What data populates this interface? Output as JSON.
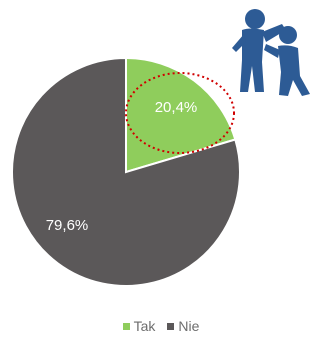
{
  "chart_data": {
    "type": "pie",
    "categories": [
      "Tak",
      "Nie"
    ],
    "values": [
      20.4,
      79.6
    ],
    "value_labels": [
      "20,4%",
      "79,6%"
    ],
    "colors": [
      "#8fcd5c",
      "#5b5859"
    ],
    "legend": "bottom-center",
    "annotation": {
      "shape": "dotted-ellipse",
      "color": "#d00000",
      "encircles": "Tak"
    },
    "icon": "two-people-conflict-icon"
  }
}
